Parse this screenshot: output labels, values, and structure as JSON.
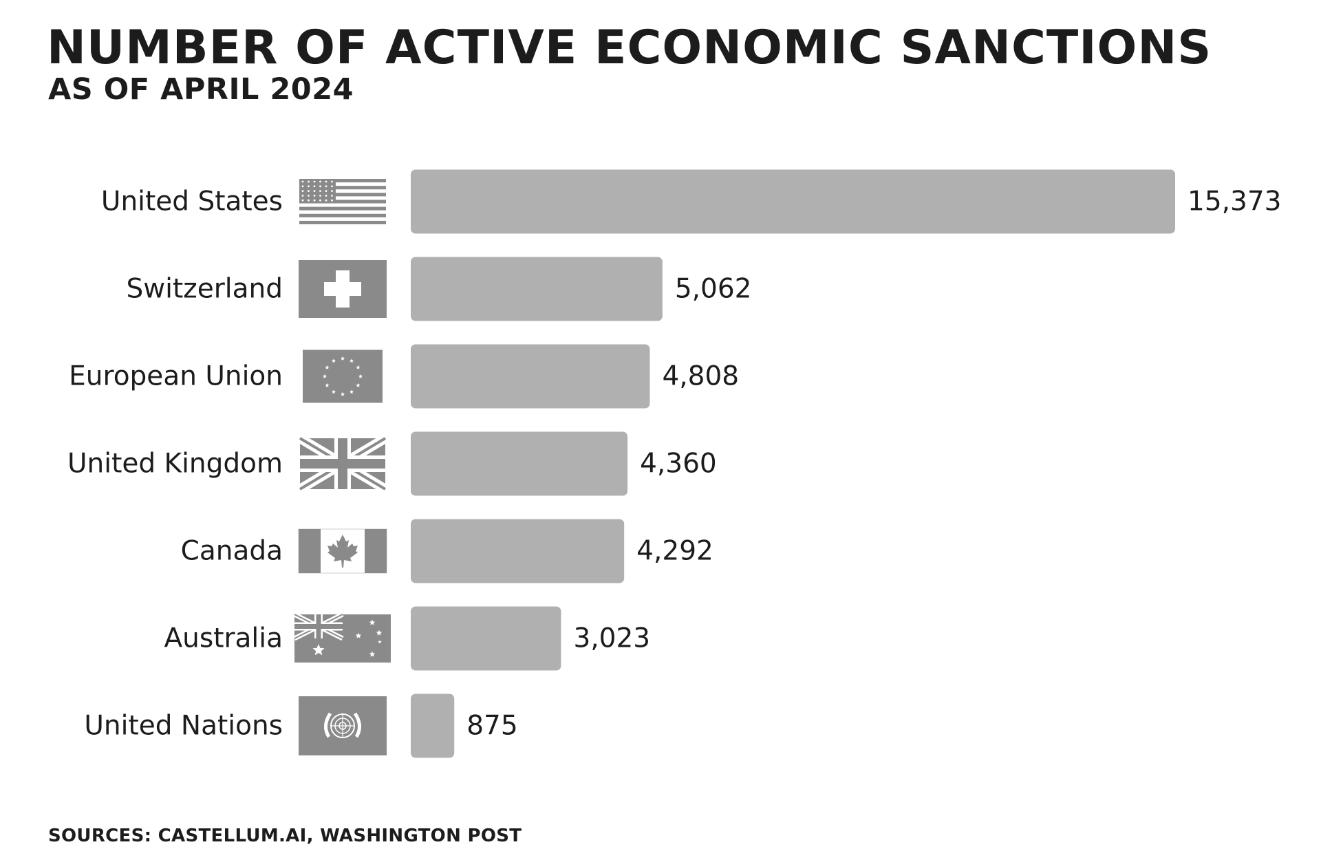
{
  "chart_data": {
    "type": "bar",
    "orientation": "horizontal",
    "title": "NUMBER OF ACTIVE ECONOMIC SANCTIONS",
    "subtitle": "AS OF APRIL 2024",
    "categories": [
      "United States",
      "Switzerland",
      "European Union",
      "United Kingdom",
      "Canada",
      "Australia",
      "United Nations"
    ],
    "values": [
      15373,
      5062,
      4808,
      4360,
      4292,
      3023,
      875
    ],
    "value_labels": [
      "15,373",
      "5,062",
      "4,808",
      "4,360",
      "4,292",
      "3,023",
      "875"
    ],
    "flags": [
      "usa-flag-icon",
      "switzerland-flag-icon",
      "eu-flag-icon",
      "uk-flag-icon",
      "canada-flag-icon",
      "australia-flag-icon",
      "un-flag-icon"
    ],
    "xlim": [
      0,
      15373
    ],
    "bar_color": "#b0b0b0",
    "flag_color": "#8a8a8a",
    "grid": false,
    "sources": "SOURCES: CASTELLUM.AI, WASHINGTON POST"
  }
}
